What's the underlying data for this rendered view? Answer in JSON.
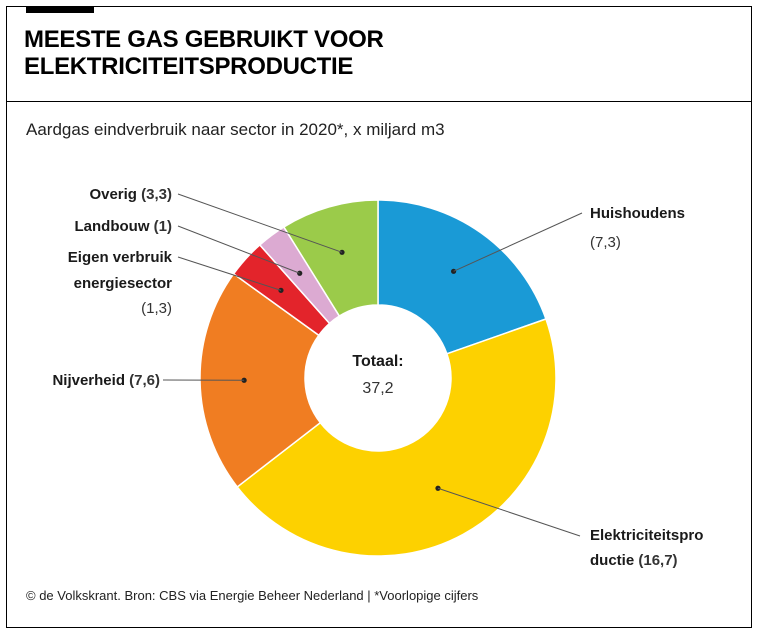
{
  "title": "MEESTE GAS GEBRUIKT VOOR ELEKTRICITEITSPRODUCTIE",
  "subtitle": "Aardgas eindverbruik naar sector in 2020*, x miljard m3",
  "footer": "© de Volkskrant. Bron: CBS via Energie Beheer Nederland | *Voorlopige cijfers",
  "center": {
    "label": "Totaal:",
    "value": "37,2"
  },
  "chart_data": {
    "type": "pie",
    "donut": true,
    "title": "MEESTE GAS GEBRUIKT VOOR ELEKTRICITEITSPRODUCTIE",
    "subtitle": "Aardgas eindverbruik naar sector in 2020*, x miljard m3",
    "total": 37.2,
    "slices": [
      {
        "name": "Huishoudens",
        "value": 7.3,
        "value_label": "(7,3)",
        "color": "#1a9ad6"
      },
      {
        "name": "Elektriciteitsproductie",
        "name_lines": [
          "Elektriciteitspro",
          "ductie"
        ],
        "value": 16.7,
        "value_label": "(16,7)",
        "color": "#fdd100"
      },
      {
        "name": "Nijverheid",
        "value": 7.6,
        "value_label": "(7,6)",
        "color": "#f07d22"
      },
      {
        "name": "Eigen verbruik energiesector",
        "name_lines": [
          "Eigen verbruik",
          "energiesector"
        ],
        "value": 1.3,
        "value_label": "(1,3)",
        "color": "#e3242b"
      },
      {
        "name": "Landbouw",
        "value": 1,
        "value_label": "(1)",
        "color": "#dcaad2"
      },
      {
        "name": "Overig",
        "value": 3.3,
        "value_label": "(3,3)",
        "color": "#9bcb4a"
      }
    ]
  }
}
